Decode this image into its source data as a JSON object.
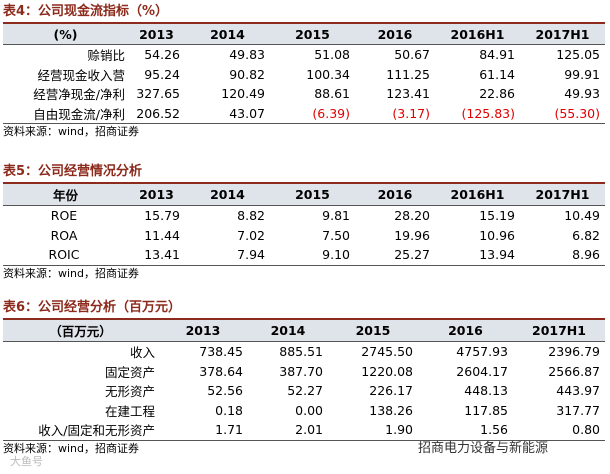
{
  "tables": [
    {
      "title": "表4：公司现金流指标（%）",
      "header": [
        "(%)",
        "2013",
        "2014",
        "2015",
        "2016",
        "2016H1",
        "2017H1"
      ],
      "rows": [
        [
          "赊销比",
          "54.26",
          "49.83",
          "51.08",
          "50.67",
          "84.91",
          "125.05"
        ],
        [
          "经营现金收入营",
          "95.24",
          "90.82",
          "100.34",
          "111.25",
          "61.14",
          "99.91"
        ],
        [
          "经营净现金/净利",
          "327.65",
          "120.49",
          "88.61",
          "123.41",
          "22.86",
          "49.93"
        ],
        [
          "自由现金流/净利",
          "206.52",
          "43.07",
          "(6.39)",
          "(3.17)",
          "(125.83)",
          "(55.30)"
        ]
      ],
      "source": "资料来源：wind，招商证券"
    },
    {
      "title": "表5：公司经营情况分析",
      "header": [
        "年份",
        "2013",
        "2014",
        "2015",
        "2016",
        "2016H1",
        "2017H1"
      ],
      "rows": [
        [
          "ROE",
          "15.79",
          "8.82",
          "9.81",
          "28.20",
          "15.19",
          "10.49"
        ],
        [
          "ROA",
          "11.44",
          "7.02",
          "7.50",
          "19.96",
          "10.96",
          "6.82"
        ],
        [
          "ROIC",
          "13.41",
          "7.94",
          "9.10",
          "25.27",
          "13.94",
          "8.96"
        ]
      ],
      "source": "资料来源：wind，招商证券"
    },
    {
      "title": "表6：公司经营分析（百万元）",
      "header": [
        "（百万元）",
        "2013",
        "2014",
        "2015",
        "2016",
        "2017H1"
      ],
      "rows": [
        [
          "收入",
          "738.45",
          "885.51",
          "2745.50",
          "4757.93",
          "2396.79"
        ],
        [
          "固定资产",
          "378.64",
          "387.70",
          "1220.08",
          "2604.17",
          "2566.87"
        ],
        [
          "无形资产",
          "52.56",
          "52.27",
          "226.17",
          "448.13",
          "443.97"
        ],
        [
          "在建工程",
          "0.18",
          "0.00",
          "138.26",
          "117.85",
          "317.77"
        ],
        [
          "收入/固定和无形资产",
          "1.71",
          "2.01",
          "1.90",
          "1.56",
          "0.80"
        ]
      ],
      "source": "资料来源：wind，招商证券"
    }
  ],
  "watermark": {
    "right": "招商电力设备与新能源",
    "left": "大鱼号"
  }
}
